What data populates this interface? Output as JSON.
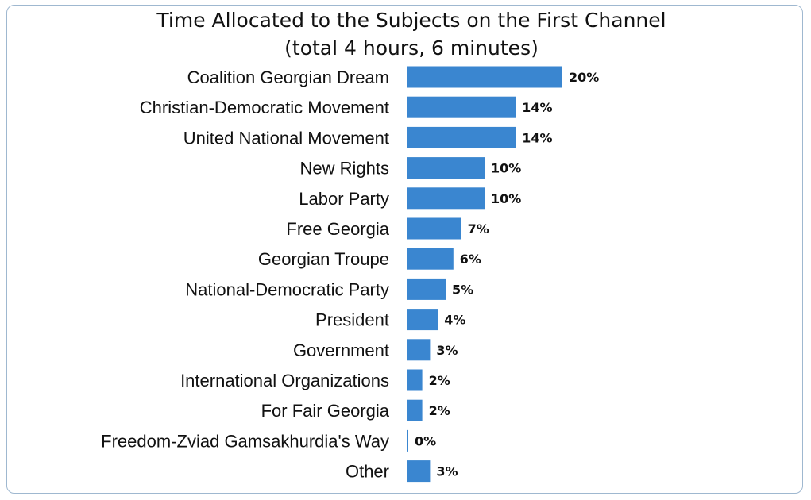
{
  "chart_data": {
    "type": "bar",
    "orientation": "horizontal",
    "title": "Time Allocated to the Subjects on the First Channel",
    "subtitle": "(total 4 hours, 6 minutes)",
    "categories": [
      "Coalition Georgian Dream",
      "Christian-Democratic Movement",
      "United National Movement",
      "New Rights",
      "Labor Party",
      "Free Georgia",
      "Georgian Troupe",
      "National-Democratic Party",
      "President",
      "Government",
      "International Organizations",
      "For Fair Georgia",
      "Freedom-Zviad Gamsakhurdia's Way",
      "Other"
    ],
    "values": [
      20,
      14,
      14,
      10,
      10,
      7,
      6,
      5,
      4,
      3,
      2,
      2,
      0,
      3
    ],
    "value_labels": [
      "20%",
      "14%",
      "14%",
      "10%",
      "10%",
      "7%",
      "6%",
      "5%",
      "4%",
      "3%",
      "2%",
      "2%",
      "0%",
      "3%"
    ],
    "unit": "%",
    "xlim": [
      0,
      20
    ],
    "grid": false,
    "legend": "none",
    "bar_color": "#3a86d0"
  }
}
